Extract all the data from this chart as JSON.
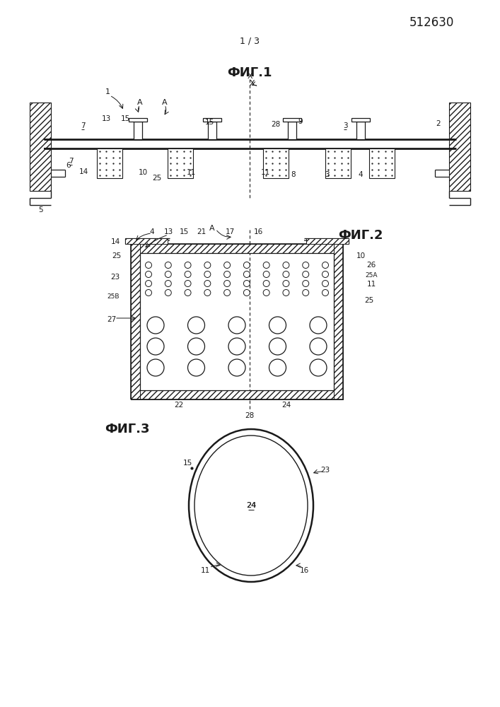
{
  "bg_color": "#ffffff",
  "line_color": "#1a1a1a",
  "patent_number": "512630",
  "page_label": "1 / 3",
  "fig1_title": "ФИГ.1",
  "fig2_title": "ФИГ.2",
  "fig3_title": "ФИГ.3"
}
